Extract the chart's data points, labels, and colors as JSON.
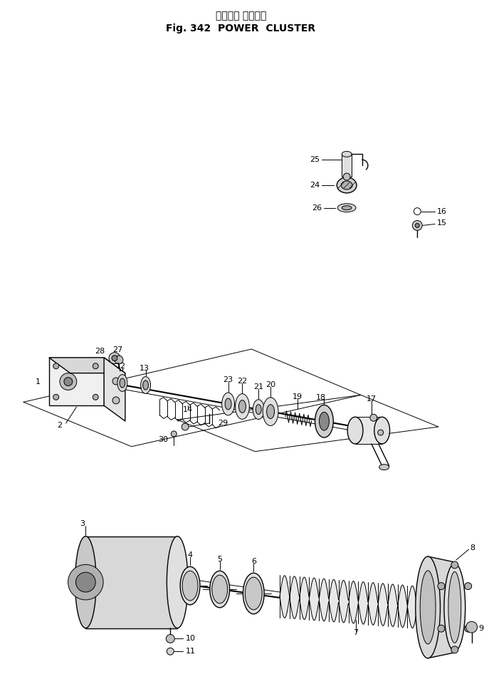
{
  "title_line1": "パワー　 クラスタ",
  "title_line2": "Fig. 342  POWER  CLUSTER",
  "bg_color": "#ffffff",
  "lc": "#000000",
  "fig_w": 6.8,
  "fig_h": 9.67,
  "dpi": 100
}
